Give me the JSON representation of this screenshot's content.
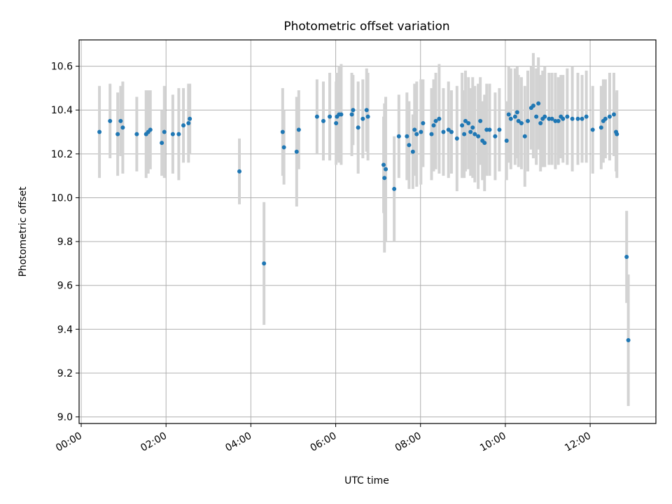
{
  "chart_data": {
    "type": "scatter",
    "title": "Photometric offset variation",
    "xlabel": "UTC time",
    "ylabel": "Photometric offset",
    "xlim": [
      -0.05,
      13.55
    ],
    "ylim": [
      8.97,
      10.72
    ],
    "xticks": [
      "00:00",
      "02:00",
      "04:00",
      "06:00",
      "08:00",
      "10:00",
      "12:00"
    ],
    "yticks": [
      "9.0",
      "9.2",
      "9.4",
      "9.6",
      "9.8",
      "10.0",
      "10.2",
      "10.4",
      "10.6"
    ],
    "grid": true,
    "point_color": "#1f77b4",
    "errorbar_color": "#d3d3d3",
    "points": [
      [
        0.43,
        10.3,
        0.21
      ],
      [
        0.68,
        10.35,
        0.17
      ],
      [
        0.86,
        10.29,
        0.19
      ],
      [
        0.93,
        10.35,
        0.16
      ],
      [
        0.98,
        10.32,
        0.21
      ],
      [
        1.31,
        10.29,
        0.17
      ],
      [
        1.53,
        10.29,
        0.2
      ],
      [
        1.58,
        10.3,
        0.19
      ],
      [
        1.63,
        10.31,
        0.18
      ],
      [
        1.9,
        10.25,
        0.15
      ],
      [
        1.96,
        10.3,
        0.21
      ],
      [
        2.16,
        10.29,
        0.18
      ],
      [
        2.3,
        10.29,
        0.21
      ],
      [
        2.41,
        10.33,
        0.17
      ],
      [
        2.53,
        10.34,
        0.18
      ],
      [
        2.56,
        10.36,
        0.16
      ],
      [
        3.73,
        10.12,
        0.15
      ],
      [
        4.31,
        9.7,
        0.28
      ],
      [
        4.75,
        10.3,
        0.2
      ],
      [
        4.78,
        10.23,
        0.17
      ],
      [
        5.08,
        10.21,
        0.25
      ],
      [
        5.13,
        10.31,
        0.18
      ],
      [
        5.56,
        10.37,
        0.17
      ],
      [
        5.71,
        10.35,
        0.18
      ],
      [
        5.86,
        10.37,
        0.2
      ],
      [
        6.01,
        10.34,
        0.19
      ],
      [
        6.03,
        10.37,
        0.2
      ],
      [
        6.08,
        10.38,
        0.22
      ],
      [
        6.13,
        10.38,
        0.23
      ],
      [
        6.38,
        10.38,
        0.19
      ],
      [
        6.41,
        10.4,
        0.16
      ],
      [
        6.53,
        10.32,
        0.21
      ],
      [
        6.64,
        10.36,
        0.18
      ],
      [
        6.73,
        10.4,
        0.19
      ],
      [
        6.76,
        10.37,
        0.2
      ],
      [
        7.13,
        10.15,
        0.22
      ],
      [
        7.15,
        10.09,
        0.34
      ],
      [
        7.18,
        10.13,
        0.33
      ],
      [
        7.38,
        10.04,
        0.24
      ],
      [
        7.49,
        10.28,
        0.19
      ],
      [
        7.68,
        10.28,
        0.2
      ],
      [
        7.73,
        10.24,
        0.2
      ],
      [
        7.82,
        10.21,
        0.17
      ],
      [
        7.86,
        10.31,
        0.21
      ],
      [
        7.91,
        10.29,
        0.24
      ],
      [
        8.01,
        10.3,
        0.24
      ],
      [
        8.06,
        10.34,
        0.2
      ],
      [
        8.26,
        10.29,
        0.21
      ],
      [
        8.31,
        10.33,
        0.21
      ],
      [
        8.36,
        10.35,
        0.22
      ],
      [
        8.44,
        10.36,
        0.25
      ],
      [
        8.54,
        10.3,
        0.2
      ],
      [
        8.66,
        10.31,
        0.22
      ],
      [
        8.73,
        10.3,
        0.19
      ],
      [
        8.86,
        10.27,
        0.24
      ],
      [
        8.98,
        10.33,
        0.24
      ],
      [
        9.03,
        10.29,
        0.2
      ],
      [
        9.06,
        10.35,
        0.23
      ],
      [
        9.13,
        10.34,
        0.21
      ],
      [
        9.18,
        10.3,
        0.2
      ],
      [
        9.23,
        10.32,
        0.23
      ],
      [
        9.28,
        10.29,
        0.22
      ],
      [
        9.36,
        10.28,
        0.24
      ],
      [
        9.41,
        10.35,
        0.2
      ],
      [
        9.46,
        10.26,
        0.18
      ],
      [
        9.51,
        10.25,
        0.22
      ],
      [
        9.56,
        10.31,
        0.21
      ],
      [
        9.63,
        10.31,
        0.21
      ],
      [
        9.76,
        10.28,
        0.2
      ],
      [
        9.86,
        10.31,
        0.19
      ],
      [
        10.03,
        10.26,
        0.18
      ],
      [
        10.08,
        10.38,
        0.22
      ],
      [
        10.13,
        10.36,
        0.23
      ],
      [
        10.23,
        10.37,
        0.22
      ],
      [
        10.28,
        10.39,
        0.21
      ],
      [
        10.31,
        10.35,
        0.21
      ],
      [
        10.38,
        10.34,
        0.21
      ],
      [
        10.46,
        10.28,
        0.23
      ],
      [
        10.53,
        10.35,
        0.23
      ],
      [
        10.61,
        10.41,
        0.19
      ],
      [
        10.66,
        10.42,
        0.24
      ],
      [
        10.73,
        10.37,
        0.22
      ],
      [
        10.78,
        10.43,
        0.21
      ],
      [
        10.83,
        10.34,
        0.22
      ],
      [
        10.88,
        10.36,
        0.22
      ],
      [
        10.93,
        10.37,
        0.23
      ],
      [
        11.03,
        10.36,
        0.21
      ],
      [
        11.1,
        10.36,
        0.21
      ],
      [
        11.18,
        10.35,
        0.22
      ],
      [
        11.25,
        10.35,
        0.2
      ],
      [
        11.31,
        10.37,
        0.19
      ],
      [
        11.36,
        10.36,
        0.2
      ],
      [
        11.46,
        10.37,
        0.22
      ],
      [
        11.58,
        10.36,
        0.24
      ],
      [
        11.71,
        10.36,
        0.21
      ],
      [
        11.81,
        10.36,
        0.2
      ],
      [
        11.91,
        10.37,
        0.21
      ],
      [
        12.06,
        10.31,
        0.2
      ],
      [
        12.26,
        10.32,
        0.19
      ],
      [
        12.31,
        10.35,
        0.19
      ],
      [
        12.36,
        10.36,
        0.18
      ],
      [
        12.46,
        10.37,
        0.2
      ],
      [
        12.56,
        10.38,
        0.19
      ],
      [
        12.61,
        10.3,
        0.18
      ],
      [
        12.63,
        10.29,
        0.2
      ],
      [
        12.86,
        9.73,
        0.21
      ],
      [
        12.9,
        9.35,
        0.3
      ]
    ]
  }
}
